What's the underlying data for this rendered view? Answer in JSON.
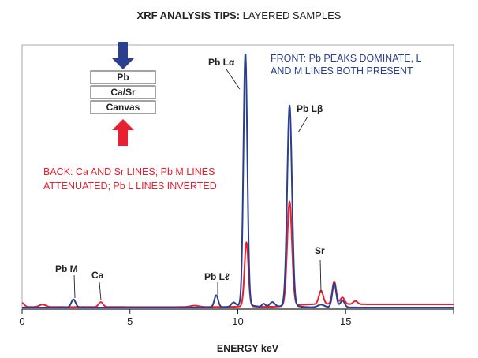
{
  "chart_data": {
    "type": "line",
    "title_bold": "XRF ANALYSIS TIPS:",
    "title_rest": " LAYERED SAMPLES",
    "xlabel": "ENERGY keV",
    "ylabel": "",
    "xlim": [
      0,
      20
    ],
    "ylim": [
      0,
      100
    ],
    "x_ticks": [
      0,
      5,
      10,
      15
    ],
    "x_tick_labels": [
      "0",
      "5",
      "10",
      "15"
    ],
    "grid": false,
    "colors": {
      "front": "#2b3f8f",
      "back": "#e8202f"
    },
    "series": [
      {
        "key": "front",
        "color": "#2b3f8f",
        "baseline": 0.6,
        "peaks": [
          {
            "energy": 2.38,
            "intensity": 3.0,
            "width": 0.1
          },
          {
            "energy": 9.0,
            "intensity": 4.5,
            "width": 0.09
          },
          {
            "energy": 9.8,
            "intensity": 1.5,
            "width": 0.1
          },
          {
            "energy": 10.35,
            "intensity": 94.6,
            "width": 0.09
          },
          {
            "energy": 11.2,
            "intensity": 1.2,
            "width": 0.08
          },
          {
            "energy": 11.6,
            "intensity": 1.8,
            "width": 0.12
          },
          {
            "energy": 12.4,
            "intensity": 75,
            "width": 0.11
          },
          {
            "energy": 13.86,
            "intensity": 1.0,
            "width": 0.15
          },
          {
            "energy": 14.47,
            "intensity": 9.0,
            "width": 0.09
          },
          {
            "energy": 14.85,
            "intensity": 2.5,
            "width": 0.1
          }
        ]
      },
      {
        "key": "back",
        "color": "#e8202f",
        "baseline": 0.8,
        "baseline_high": 1.8,
        "peaks": [
          {
            "energy": 0.0,
            "intensity": 1.5,
            "width": 0.1
          },
          {
            "energy": 0.95,
            "intensity": 0.9,
            "width": 0.15
          },
          {
            "energy": 3.65,
            "intensity": 1.8,
            "width": 0.1
          },
          {
            "energy": 8.0,
            "intensity": 0.5,
            "width": 0.2
          },
          {
            "energy": 10.4,
            "intensity": 24,
            "width": 0.09
          },
          {
            "energy": 12.4,
            "intensity": 39,
            "width": 0.11
          },
          {
            "energy": 13.86,
            "intensity": 5.0,
            "width": 0.1
          },
          {
            "energy": 14.47,
            "intensity": 8.5,
            "width": 0.09
          },
          {
            "energy": 14.85,
            "intensity": 2.5,
            "width": 0.1
          },
          {
            "energy": 15.45,
            "intensity": 1.2,
            "width": 0.1
          }
        ]
      }
    ],
    "annotations": [
      {
        "text": "Pb M"
      },
      {
        "text": "Ca"
      },
      {
        "text": "Pb Lℓ"
      },
      {
        "text": "Pb Lα"
      },
      {
        "text": "Pb Lβ"
      },
      {
        "text": "Sr"
      }
    ],
    "front_note": [
      "FRONT: Pb PEAKS DOMINATE, L",
      "AND M LINES BOTH PRESENT"
    ],
    "back_note": [
      "BACK: Ca AND Sr LINES; Pb M LINES",
      "ATTENUATED; Pb L LINES INVERTED"
    ],
    "layers": [
      "Pb",
      "Ca/Sr",
      "Canvas"
    ]
  }
}
